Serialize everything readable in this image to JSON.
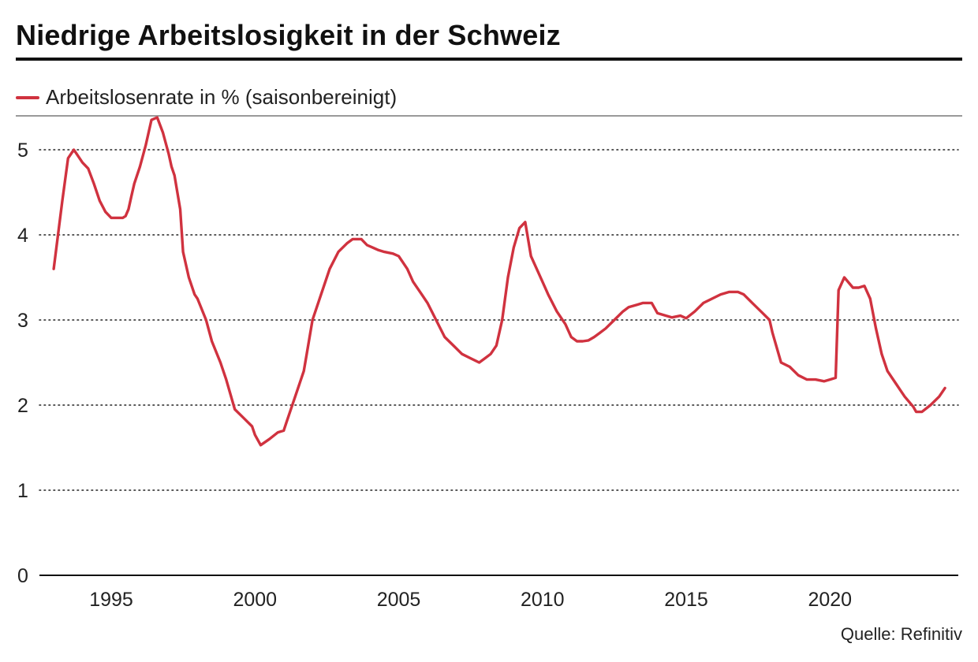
{
  "title": "Niedrige Arbeitslosigkeit in der Schweiz",
  "source": "Quelle: Refinitiv",
  "colors": {
    "series": "#d0323f",
    "text": "#222222",
    "grid": "#222222"
  },
  "chart_data": {
    "type": "line",
    "title": "Niedrige Arbeitslosigkeit in der Schweiz",
    "xlabel": "",
    "ylabel": "",
    "xlim": [
      1993,
      2024
    ],
    "ylim": [
      0,
      5.4
    ],
    "yticks": [
      0,
      1,
      2,
      3,
      4,
      5
    ],
    "xticks": [
      1995,
      2000,
      2005,
      2010,
      2015,
      2020
    ],
    "grid": "horizontal dotted",
    "legend_position": "top-left",
    "series": [
      {
        "name": "Arbeitslosenrate in % (saisonbereinigt)",
        "x": [
          1993.0,
          1993.3,
          1993.5,
          1993.7,
          1993.8,
          1994.0,
          1994.2,
          1994.4,
          1994.6,
          1994.8,
          1995.0,
          1995.2,
          1995.4,
          1995.5,
          1995.6,
          1995.7,
          1995.8,
          1996.0,
          1996.2,
          1996.4,
          1996.6,
          1996.8,
          1997.0,
          1997.1,
          1997.2,
          1997.4,
          1997.5,
          1997.7,
          1997.9,
          1998.0,
          1998.3,
          1998.5,
          1998.8,
          1999.0,
          1999.3,
          1999.6,
          1999.9,
          2000.0,
          2000.2,
          2000.5,
          2000.8,
          2001.0,
          2001.1,
          2001.3,
          2001.5,
          2001.7,
          2001.8,
          2002.0,
          2002.3,
          2002.6,
          2002.9,
          2003.2,
          2003.4,
          2003.7,
          2003.9,
          2004.1,
          2004.3,
          2004.5,
          2004.8,
          2005.0,
          2005.3,
          2005.5,
          2005.8,
          2006.0,
          2006.3,
          2006.6,
          2006.9,
          2007.2,
          2007.5,
          2007.8,
          2008.0,
          2008.2,
          2008.4,
          2008.6,
          2008.8,
          2009.0,
          2009.2,
          2009.4,
          2009.6,
          2009.8,
          2010.0,
          2010.2,
          2010.5,
          2010.8,
          2011.0,
          2011.2,
          2011.4,
          2011.6,
          2011.8,
          2012.0,
          2012.2,
          2012.5,
          2012.8,
          2013.0,
          2013.3,
          2013.5,
          2013.8,
          2014.0,
          2014.3,
          2014.5,
          2014.8,
          2015.0,
          2015.3,
          2015.6,
          2015.9,
          2016.2,
          2016.5,
          2016.8,
          2017.0,
          2017.3,
          2017.6,
          2017.9,
          2018.0,
          2018.3,
          2018.6,
          2018.9,
          2019.2,
          2019.5,
          2019.8,
          2020.0,
          2020.2,
          2020.3,
          2020.5,
          2020.8,
          2021.0,
          2021.2,
          2021.4,
          2021.6,
          2021.8,
          2022.0,
          2022.3,
          2022.6,
          2022.9,
          2023.0,
          2023.2,
          2023.5,
          2023.8,
          2024.0
        ],
        "y": [
          3.6,
          4.4,
          4.9,
          5.0,
          4.95,
          4.85,
          4.78,
          4.6,
          4.4,
          4.27,
          4.2,
          4.2,
          4.2,
          4.22,
          4.3,
          4.45,
          4.6,
          4.8,
          5.05,
          5.35,
          5.38,
          5.2,
          4.95,
          4.8,
          4.7,
          4.3,
          3.8,
          3.5,
          3.3,
          3.25,
          3.0,
          2.75,
          2.5,
          2.3,
          1.95,
          1.85,
          1.75,
          1.65,
          1.53,
          1.6,
          1.68,
          1.7,
          1.8,
          2.0,
          2.2,
          2.4,
          2.6,
          3.0,
          3.3,
          3.6,
          3.8,
          3.9,
          3.95,
          3.95,
          3.88,
          3.85,
          3.82,
          3.8,
          3.78,
          3.75,
          3.6,
          3.45,
          3.3,
          3.2,
          3.0,
          2.8,
          2.7,
          2.6,
          2.55,
          2.5,
          2.55,
          2.6,
          2.7,
          3.0,
          3.5,
          3.85,
          4.08,
          4.15,
          3.75,
          3.6,
          3.45,
          3.3,
          3.1,
          2.95,
          2.8,
          2.75,
          2.75,
          2.76,
          2.8,
          2.85,
          2.9,
          3.0,
          3.1,
          3.15,
          3.18,
          3.2,
          3.2,
          3.08,
          3.05,
          3.03,
          3.05,
          3.02,
          3.1,
          3.2,
          3.25,
          3.3,
          3.33,
          3.33,
          3.3,
          3.2,
          3.1,
          3.0,
          2.85,
          2.5,
          2.45,
          2.35,
          2.3,
          2.3,
          2.28,
          2.3,
          2.32,
          3.35,
          3.5,
          3.38,
          3.38,
          3.4,
          3.25,
          2.9,
          2.6,
          2.4,
          2.25,
          2.1,
          1.98,
          1.92,
          1.92,
          2.0,
          2.1,
          2.2
        ]
      }
    ]
  }
}
